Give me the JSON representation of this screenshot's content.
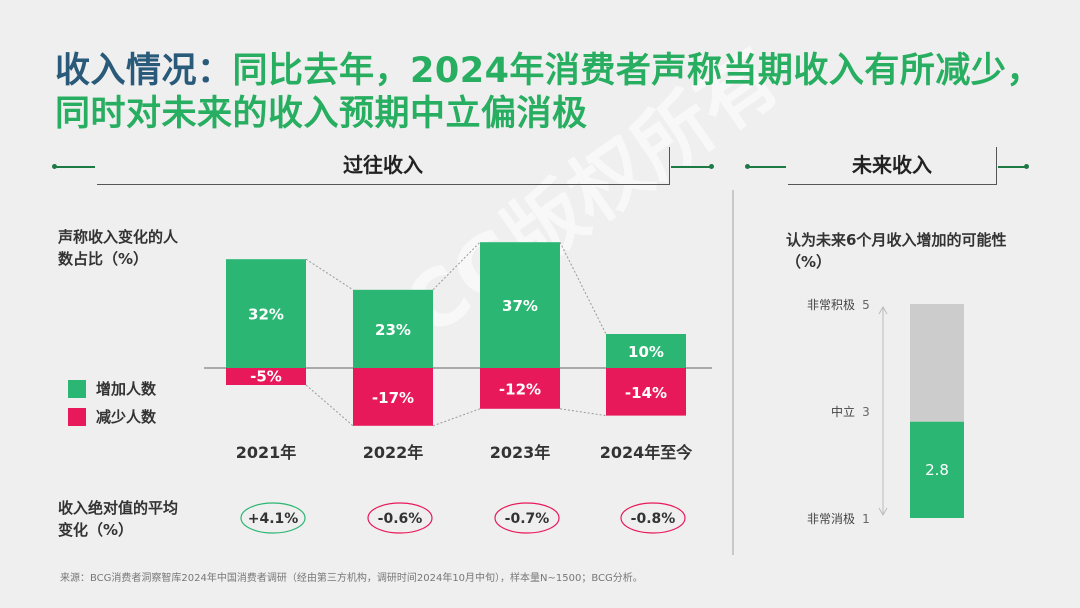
{
  "title": {
    "lead": "收入情况：",
    "text": "同比去年，2024年消费者声称当期收入有所减少，同时对未来的收入预期中立偏消极"
  },
  "sections": {
    "past": "过往收入",
    "future": "未来收入"
  },
  "left_panel": {
    "ylabel": "声称收入变化的人数占比（%）",
    "legend": [
      {
        "label": "增加人数",
        "color": "#2bb673"
      },
      {
        "label": "减少人数",
        "color": "#e8195a"
      }
    ],
    "avg_label": "收入绝对值的平均变化（%）"
  },
  "right_panel": {
    "label": "认为未来6个月收入增加的可能性（%）"
  },
  "footer": "来源：BCG消费者洞察智库2024年中国消费者调研（经由第三方机构，调研时间2024年10月中旬），样本量N~1500；BCG分析。",
  "watermark": "BCG版权所有",
  "colors": {
    "increase": "#2bb673",
    "decrease": "#e8195a",
    "grey": "#cccccc",
    "title_lead": "#2a5a7a",
    "title": "#27ae60"
  },
  "chart_data": [
    {
      "type": "bar",
      "categories": [
        "2021年",
        "2022年",
        "2023年",
        "2024年至今"
      ],
      "series": [
        {
          "name": "增加人数",
          "values": [
            32,
            23,
            37,
            10
          ],
          "labels": [
            "32%",
            "23%",
            "37%",
            "10%"
          ]
        },
        {
          "name": "减少人数",
          "values": [
            -5,
            -17,
            -12,
            -14
          ],
          "labels": [
            "-5%",
            "-17%",
            "-12%",
            "-14%"
          ]
        }
      ],
      "net_change": [
        4.1,
        -0.6,
        -0.7,
        -0.8
      ],
      "net_change_labels": [
        "+4.1%",
        "-0.6%",
        "-0.7%",
        "-0.8%"
      ],
      "xlabel": "",
      "ylabel": "声称收入变化的人数占比（%）",
      "ylim": [
        -20,
        40
      ],
      "grid": false
    },
    {
      "type": "bar",
      "categories": [
        ""
      ],
      "values": [
        2.8
      ],
      "value_label": "2.8",
      "ylim": [
        1,
        5
      ],
      "ticks": [
        {
          "value": 5,
          "label": "非常积极",
          "num": "5"
        },
        {
          "value": 3,
          "label": "中立",
          "num": "3"
        },
        {
          "value": 1,
          "label": "非常消极",
          "num": "1"
        }
      ],
      "grid": false
    }
  ]
}
